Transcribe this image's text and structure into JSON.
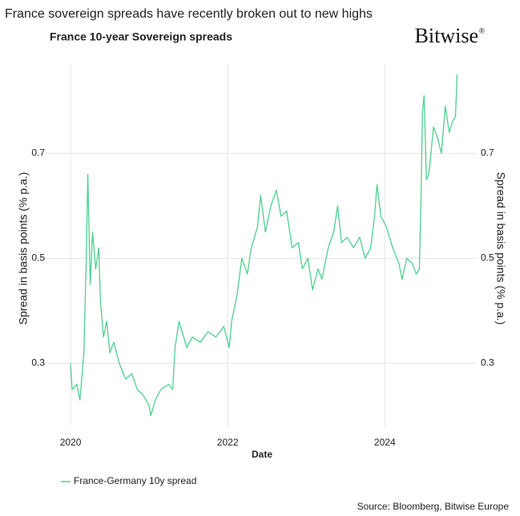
{
  "header": {
    "title": "France sovereign spreads have recently broken out to new highs",
    "logo": "Bitwise",
    "logo_mark": "®"
  },
  "chart_data": {
    "type": "line",
    "title": "France 10-year Sovereign  spreads",
    "xlabel": "Date",
    "ylabel": "Spread in basis points (% p.a.)",
    "y2label": "Spread in basis points (% p.a.)",
    "xlim": [
      2019.51,
      2025.17
    ],
    "xticks": [
      2020,
      2022,
      2024
    ],
    "ylim": [
      0.18,
      0.87
    ],
    "yticks": [
      0.3,
      0.5,
      0.7
    ],
    "y2lim": [
      0.18,
      0.87
    ],
    "y2ticks": [
      0.3,
      0.5,
      0.7
    ],
    "grid": true,
    "legend": "bottom-left",
    "x": [
      2020.0,
      2020.02,
      2020.08,
      2020.12,
      2020.17,
      2020.2,
      2020.22,
      2020.25,
      2020.28,
      2020.32,
      2020.36,
      2020.38,
      2020.42,
      2020.46,
      2020.5,
      2020.55,
      2020.62,
      2020.7,
      2020.78,
      2020.85,
      2020.92,
      2021.0,
      2021.02,
      2021.08,
      2021.15,
      2021.25,
      2021.3,
      2021.33,
      2021.38,
      2021.42,
      2021.48,
      2021.55,
      2021.65,
      2021.75,
      2021.85,
      2021.95,
      2022.02,
      2022.05,
      2022.12,
      2022.18,
      2022.25,
      2022.3,
      2022.38,
      2022.42,
      2022.48,
      2022.55,
      2022.62,
      2022.68,
      2022.75,
      2022.82,
      2022.9,
      2022.95,
      2023.02,
      2023.08,
      2023.15,
      2023.2,
      2023.28,
      2023.35,
      2023.4,
      2023.45,
      2023.52,
      2023.6,
      2023.68,
      2023.75,
      2023.82,
      2023.87,
      2023.9,
      2023.95,
      2024.02,
      2024.1,
      2024.18,
      2024.22,
      2024.28,
      2024.35,
      2024.4,
      2024.44,
      2024.46,
      2024.48,
      2024.5,
      2024.53,
      2024.56,
      2024.62,
      2024.67,
      2024.72,
      2024.77,
      2024.82,
      2024.86,
      2024.9,
      2024.92
    ],
    "series": [
      {
        "name": "France-Germany 10y spread",
        "color": "#4fcf8f",
        "values": [
          0.3,
          0.25,
          0.26,
          0.23,
          0.32,
          0.5,
          0.66,
          0.45,
          0.55,
          0.48,
          0.52,
          0.42,
          0.35,
          0.38,
          0.32,
          0.34,
          0.3,
          0.27,
          0.28,
          0.25,
          0.24,
          0.22,
          0.2,
          0.23,
          0.25,
          0.26,
          0.25,
          0.33,
          0.38,
          0.36,
          0.33,
          0.35,
          0.34,
          0.36,
          0.35,
          0.37,
          0.33,
          0.38,
          0.43,
          0.5,
          0.47,
          0.52,
          0.56,
          0.62,
          0.55,
          0.6,
          0.63,
          0.58,
          0.59,
          0.52,
          0.53,
          0.48,
          0.5,
          0.44,
          0.48,
          0.46,
          0.52,
          0.55,
          0.6,
          0.53,
          0.54,
          0.52,
          0.54,
          0.5,
          0.52,
          0.58,
          0.64,
          0.58,
          0.56,
          0.52,
          0.49,
          0.46,
          0.5,
          0.49,
          0.47,
          0.48,
          0.61,
          0.78,
          0.81,
          0.65,
          0.66,
          0.75,
          0.73,
          0.7,
          0.79,
          0.74,
          0.76,
          0.77,
          0.85
        ]
      }
    ],
    "source": "Source: Bloomberg, Bitwise Europe"
  }
}
